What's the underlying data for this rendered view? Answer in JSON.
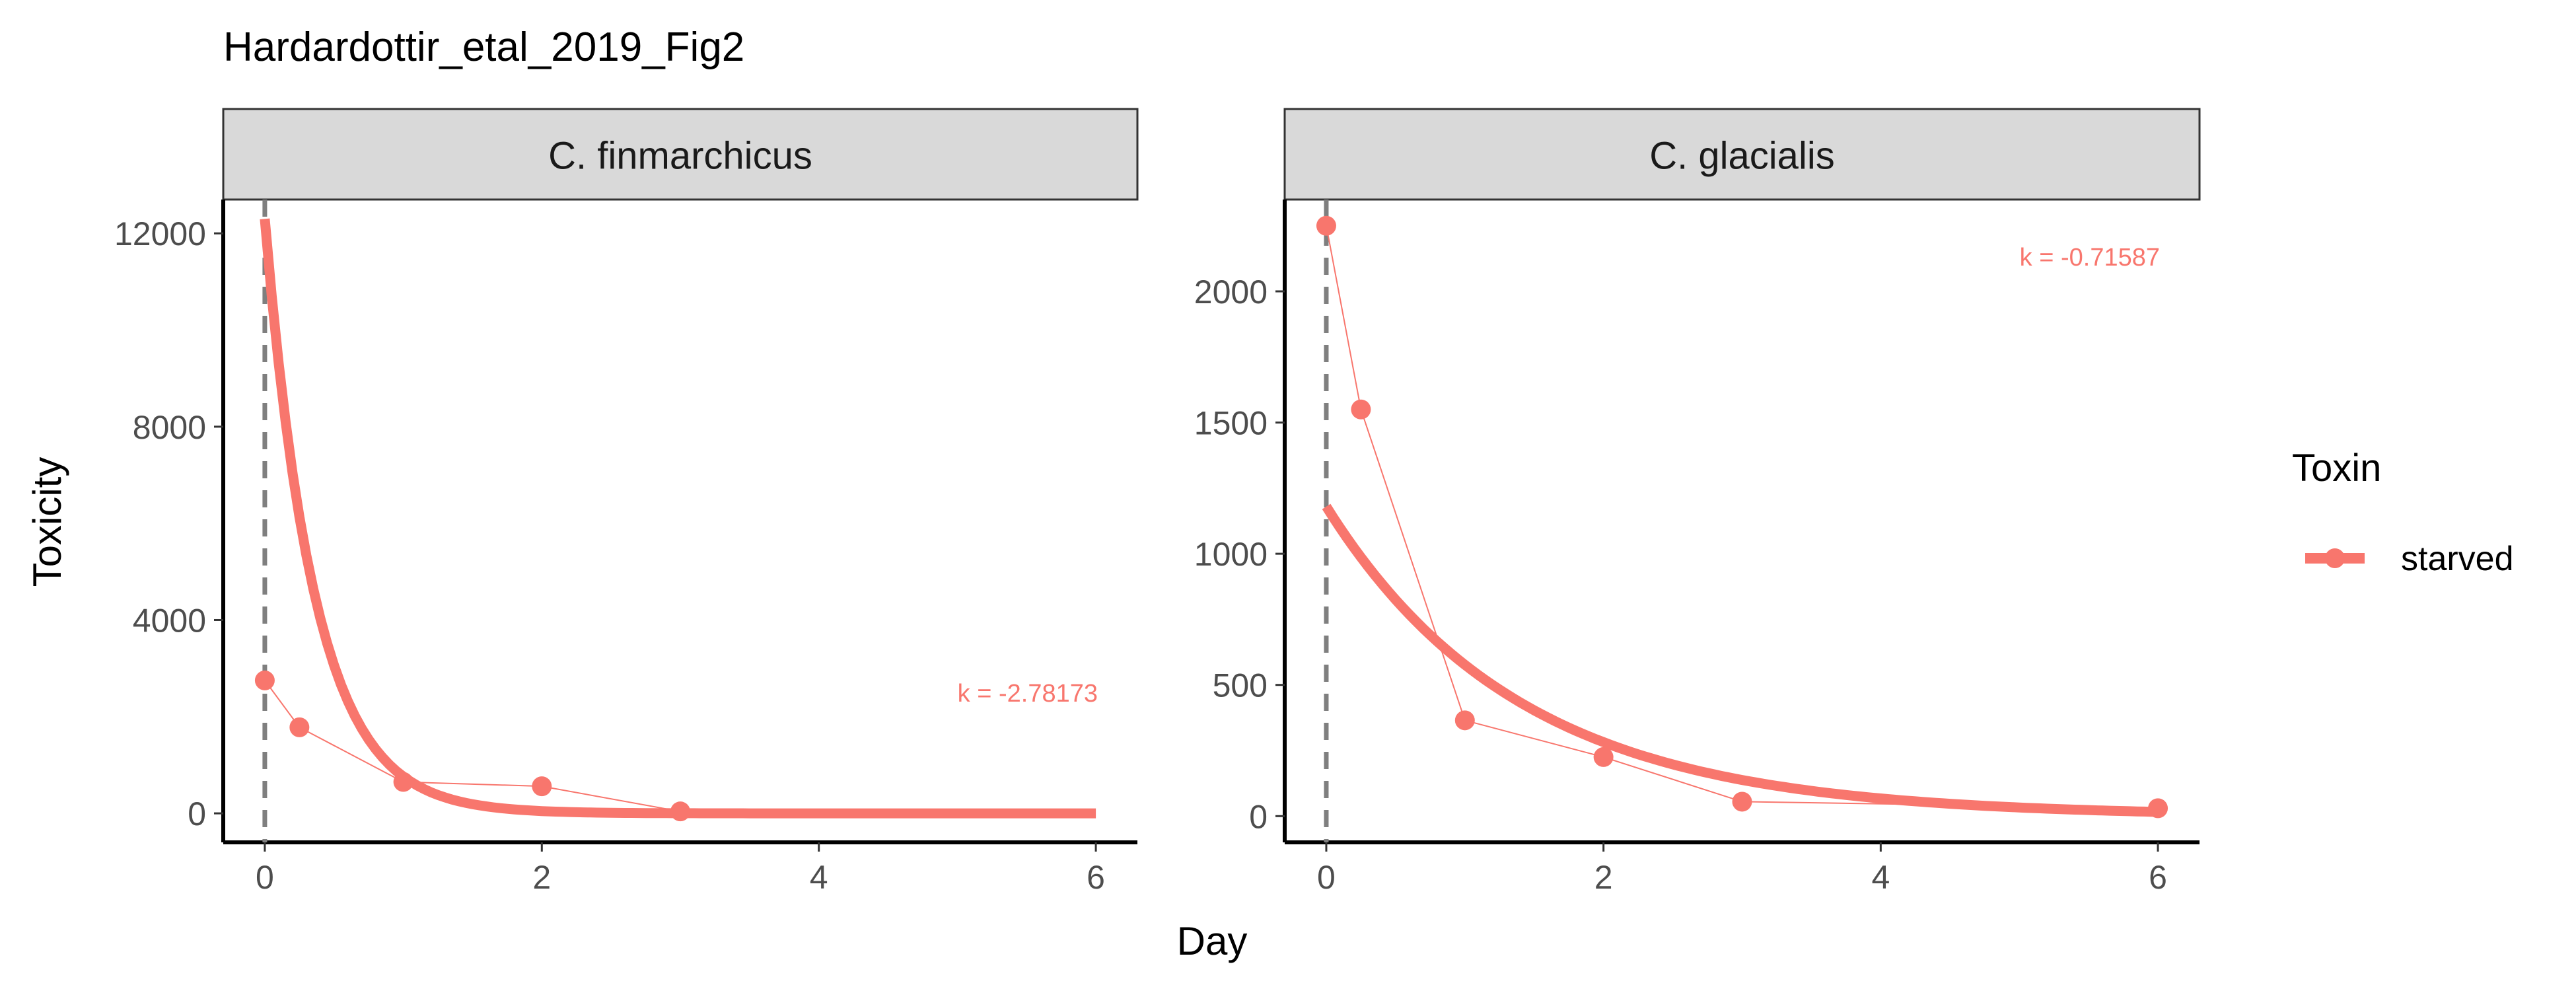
{
  "chart_data": {
    "type": "line",
    "title": "Hardardottir_etal_2019_Fig2",
    "xlabel": "Day",
    "ylabel": "Toxicity",
    "legend": {
      "title": "Toxin",
      "placement": "right",
      "entries": [
        "starved"
      ]
    },
    "colors": {
      "series": "#f8766d",
      "vline": "#7f7f7f",
      "strip": "#d9d9d9",
      "axis": "#000000",
      "tick_text": "#4d4d4d"
    },
    "panels": [
      {
        "strip": "C. finmarchicus",
        "xlim": [
          -0.3,
          6.3
        ],
        "ylim": [
          -600,
          12700
        ],
        "x_ticks": [
          0,
          2,
          4,
          6
        ],
        "y_ticks": [
          0,
          4000,
          8000,
          12000
        ],
        "vline_x": 0,
        "annotation": "k = -2.78173",
        "observed": {
          "name": "starved",
          "x": [
            0,
            0.25,
            1,
            2,
            3
          ],
          "y": [
            2750,
            1780,
            650,
            560,
            40
          ]
        },
        "fit": {
          "a0": 12300,
          "k": -2.78173,
          "x_from": 0,
          "x_to": 6
        }
      },
      {
        "strip": "C. glacialis",
        "xlim": [
          -0.3,
          6.3
        ],
        "ylim": [
          -100,
          2350
        ],
        "x_ticks": [
          0,
          2,
          4,
          6
        ],
        "y_ticks": [
          0,
          500,
          1000,
          1500,
          2000
        ],
        "vline_x": 0,
        "annotation": "k = -0.71587",
        "observed": {
          "name": "starved",
          "x": [
            0,
            0.25,
            1,
            2,
            3,
            6
          ],
          "y": [
            2250,
            1550,
            365,
            225,
            55,
            30
          ]
        },
        "fit": {
          "a0": 1180,
          "k": -0.71587,
          "x_from": 0,
          "x_to": 6
        }
      }
    ]
  }
}
